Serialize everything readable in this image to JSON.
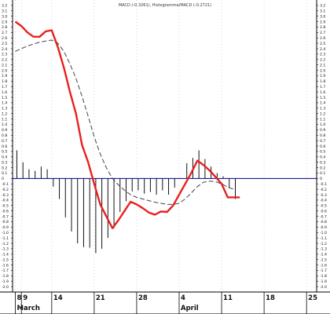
{
  "chart_data": {
    "type": "line",
    "title": "MACD (-0.3261), Histogramma/MACD (-0.2721)",
    "xlabel": "",
    "ylabel": "",
    "ylim": [
      -2.1,
      3.3
    ],
    "y_tick_step": 0.1,
    "x_ticks": [
      {
        "day": 8,
        "label": "8"
      },
      {
        "day": 9,
        "label": "9"
      },
      {
        "day": 14,
        "label": "14"
      },
      {
        "day": 21,
        "label": "21"
      },
      {
        "day": 28,
        "label": "28"
      },
      {
        "day": 35,
        "label": "4"
      },
      {
        "day": 42,
        "label": "11"
      },
      {
        "day": 49,
        "label": "18"
      },
      {
        "day": 56,
        "label": "25"
      }
    ],
    "month_labels": [
      {
        "day": 8,
        "label": "March"
      },
      {
        "day": 35,
        "label": "April"
      }
    ],
    "zero_line": 0,
    "series": [
      {
        "style": "solid",
        "color": "#e8201e",
        "x": [
          8,
          9,
          10,
          11,
          12,
          13,
          14,
          15,
          16,
          17,
          18,
          19,
          20,
          21,
          22,
          23,
          24,
          25,
          26,
          27,
          28,
          29,
          30,
          31,
          32,
          33,
          34,
          35,
          36,
          37,
          38,
          39,
          40,
          41,
          42,
          43,
          44,
          45
        ],
        "values": [
          2.9,
          2.82,
          2.7,
          2.62,
          2.62,
          2.72,
          2.74,
          2.43,
          2.05,
          1.6,
          1.2,
          0.62,
          0.3,
          -0.1,
          -0.48,
          -0.7,
          -0.92,
          -0.77,
          -0.6,
          -0.43,
          -0.48,
          -0.55,
          -0.63,
          -0.67,
          -0.61,
          -0.62,
          -0.5,
          -0.3,
          -0.1,
          0.1,
          0.33,
          0.25,
          0.15,
          0.03,
          -0.1,
          -0.35,
          -0.35,
          -0.35
        ]
      },
      {
        "style": "dashed",
        "color": "#444444",
        "x": [
          8,
          10,
          12,
          14,
          15,
          16,
          17,
          18,
          19,
          20,
          21,
          22,
          23,
          24,
          25,
          26,
          27,
          28,
          29,
          30,
          31,
          32,
          33,
          34,
          35,
          36,
          37,
          38,
          39,
          40,
          41,
          42,
          43,
          44
        ],
        "values": [
          2.35,
          2.45,
          2.52,
          2.56,
          2.5,
          2.35,
          2.12,
          1.85,
          1.52,
          1.15,
          0.77,
          0.45,
          0.2,
          0.0,
          -0.12,
          -0.22,
          -0.3,
          -0.35,
          -0.38,
          -0.41,
          -0.44,
          -0.46,
          -0.48,
          -0.48,
          -0.46,
          -0.38,
          -0.27,
          -0.15,
          -0.07,
          -0.05,
          -0.06,
          -0.1,
          -0.16,
          -0.2
        ]
      }
    ],
    "histogram": {
      "color": "#111111",
      "x": [
        8,
        9,
        10,
        11,
        12,
        13,
        14,
        15,
        16,
        17,
        18,
        19,
        20,
        21,
        22,
        23,
        24,
        25,
        26,
        27,
        28,
        29,
        30,
        31,
        32,
        33,
        34,
        35,
        36,
        37,
        38,
        39,
        40,
        41,
        42,
        43,
        44
      ],
      "values": [
        0.52,
        0.3,
        0.17,
        0.14,
        0.22,
        0.17,
        -0.15,
        -0.38,
        -0.72,
        -0.98,
        -1.2,
        -1.27,
        -1.28,
        -1.38,
        -1.3,
        -1.1,
        -0.92,
        -0.62,
        -0.42,
        -0.24,
        -0.22,
        -0.28,
        -0.25,
        -0.3,
        -0.22,
        -0.3,
        -0.17,
        0.0,
        0.28,
        0.38,
        0.52,
        0.36,
        0.22,
        0.1,
        0.04,
        -0.18,
        -0.38
      ]
    }
  }
}
